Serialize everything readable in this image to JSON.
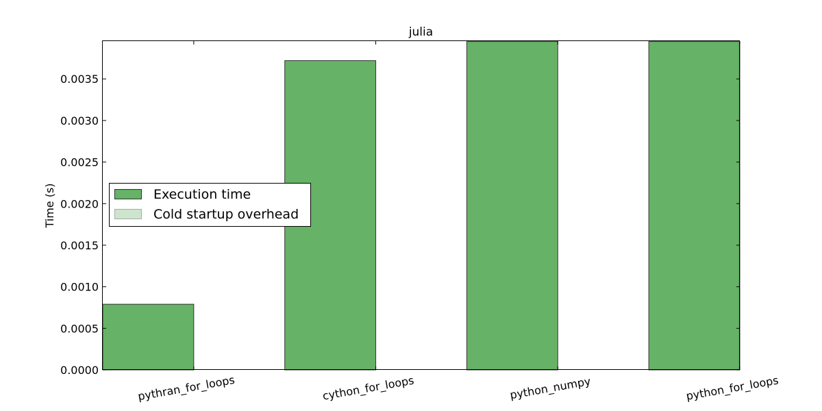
{
  "chart_data": {
    "type": "bar",
    "title": "julia",
    "xlabel": "",
    "ylabel": "Time (s)",
    "categories": [
      "pythran_for_loops",
      "cython_for_loops",
      "python_numpy",
      "python_for_loops"
    ],
    "series": [
      {
        "name": "Execution time",
        "values": [
          0.00079,
          0.00372,
          0.00395,
          0.00395
        ],
        "color": "#66b266"
      },
      {
        "name": "Cold startup overhead",
        "values": [
          0,
          0,
          0,
          0
        ],
        "color": "#cce5cc"
      }
    ],
    "ylim": [
      0,
      0.003955
    ],
    "yticks": [
      0,
      0.0005,
      0.001,
      0.0015,
      0.002,
      0.0025,
      0.003,
      0.0035
    ],
    "ytick_labels": [
      "0.0000",
      "0.0005",
      "0.0010",
      "0.0015",
      "0.0020",
      "0.0025",
      "0.0030",
      "0.0035"
    ],
    "legend": "center-left",
    "grid": false
  }
}
